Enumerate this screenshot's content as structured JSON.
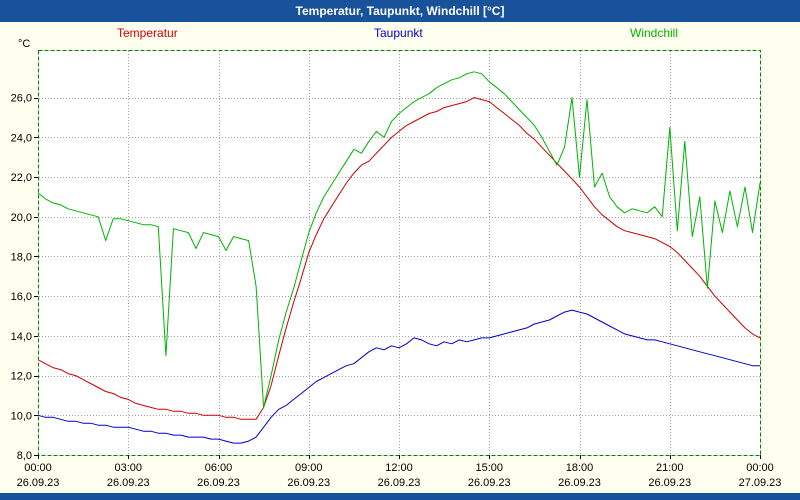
{
  "title_bar": {
    "title": "Temperatur, Taupunkt, Windchill [°C]"
  },
  "legend": {
    "items": [
      {
        "label": "Temperatur",
        "color": "#cc0000"
      },
      {
        "label": "Taupunkt",
        "color": "#0000c8"
      },
      {
        "label": "Windchill",
        "color": "#00b400"
      }
    ]
  },
  "axis": {
    "unit_label": "°C"
  },
  "colors": {
    "page_bg": "#fffff0",
    "plot_bg": "#ffffff",
    "title_bar_bg": "#17529b",
    "plot_border": "#008000",
    "grid": "#a0a0a0",
    "temperatur": "#cc0000",
    "taupunkt": "#0000c8",
    "windchill": "#00b400"
  },
  "chart_data": {
    "type": "line",
    "title": "Temperatur, Taupunkt, Windchill [°C]",
    "ylabel": "°C",
    "xlabel": "",
    "grid": true,
    "xlim": [
      0,
      24
    ],
    "ylim": [
      8,
      28.4
    ],
    "x_start": 0,
    "x_step": 0.25,
    "x_unit": "hours",
    "y_ticks": {
      "values": [
        8,
        10,
        12,
        14,
        16,
        18,
        20,
        22,
        24,
        26
      ],
      "labels": [
        "8,0",
        "10,0",
        "12,0",
        "14,0",
        "16,0",
        "18,0",
        "20,0",
        "22,0",
        "24,0",
        "26,0"
      ]
    },
    "x_ticks": {
      "values": [
        0,
        3,
        6,
        9,
        12,
        15,
        18,
        21,
        24
      ],
      "time_labels": [
        "00:00",
        "03:00",
        "06:00",
        "09:00",
        "12:00",
        "15:00",
        "18:00",
        "21:00",
        "00:00"
      ],
      "date_labels": [
        "26.09.23",
        "26.09.23",
        "26.09.23",
        "26.09.23",
        "26.09.23",
        "26.09.23",
        "26.09.23",
        "26.09.23",
        "27.09.23"
      ]
    },
    "series": [
      {
        "name": "Temperatur",
        "color": "#cc0000",
        "values": [
          12.8,
          12.6,
          12.4,
          12.3,
          12.1,
          12.0,
          11.8,
          11.6,
          11.4,
          11.2,
          11.1,
          10.9,
          10.8,
          10.6,
          10.5,
          10.4,
          10.3,
          10.3,
          10.2,
          10.2,
          10.1,
          10.1,
          10.0,
          10.0,
          10.0,
          9.9,
          9.9,
          9.8,
          9.8,
          9.8,
          10.4,
          11.5,
          13.0,
          14.4,
          15.7,
          16.9,
          18.2,
          19.1,
          19.9,
          20.5,
          21.1,
          21.7,
          22.2,
          22.6,
          22.8,
          23.2,
          23.6,
          24.0,
          24.3,
          24.6,
          24.8,
          25.0,
          25.2,
          25.3,
          25.5,
          25.6,
          25.7,
          25.8,
          26.0,
          25.9,
          25.8,
          25.5,
          25.2,
          24.9,
          24.6,
          24.2,
          23.9,
          23.5,
          23.1,
          22.7,
          22.3,
          21.9,
          21.5,
          21.0,
          20.5,
          20.1,
          19.8,
          19.5,
          19.3,
          19.2,
          19.1,
          19.0,
          18.9,
          18.7,
          18.5,
          18.2,
          17.8,
          17.4,
          17.0,
          16.5,
          16.0,
          15.6,
          15.2,
          14.8,
          14.4,
          14.1,
          13.9
        ]
      },
      {
        "name": "Taupunkt",
        "color": "#0000c8",
        "values": [
          10.0,
          9.9,
          9.9,
          9.8,
          9.7,
          9.7,
          9.6,
          9.6,
          9.5,
          9.5,
          9.4,
          9.4,
          9.4,
          9.3,
          9.2,
          9.2,
          9.1,
          9.1,
          9.0,
          9.0,
          8.9,
          8.9,
          8.9,
          8.8,
          8.8,
          8.7,
          8.6,
          8.6,
          8.7,
          8.9,
          9.4,
          9.9,
          10.3,
          10.5,
          10.8,
          11.1,
          11.4,
          11.7,
          11.9,
          12.1,
          12.3,
          12.5,
          12.6,
          12.9,
          13.2,
          13.4,
          13.3,
          13.5,
          13.4,
          13.6,
          13.9,
          13.8,
          13.6,
          13.5,
          13.7,
          13.6,
          13.8,
          13.7,
          13.8,
          13.9,
          13.9,
          14.0,
          14.1,
          14.2,
          14.3,
          14.4,
          14.6,
          14.7,
          14.8,
          15.0,
          15.2,
          15.3,
          15.2,
          15.1,
          14.9,
          14.7,
          14.5,
          14.3,
          14.1,
          14.0,
          13.9,
          13.8,
          13.8,
          13.7,
          13.6,
          13.5,
          13.4,
          13.3,
          13.2,
          13.1,
          13.0,
          12.9,
          12.8,
          12.7,
          12.6,
          12.5,
          12.5
        ]
      },
      {
        "name": "Windchill",
        "color": "#00b400",
        "values": [
          21.2,
          20.9,
          20.7,
          20.6,
          20.4,
          20.3,
          20.2,
          20.1,
          20.0,
          18.8,
          19.9,
          19.9,
          19.8,
          19.7,
          19.6,
          19.6,
          19.5,
          13.0,
          19.4,
          19.3,
          19.2,
          18.4,
          19.2,
          19.1,
          19.0,
          18.3,
          19.0,
          18.9,
          18.8,
          16.5,
          10.4,
          12.0,
          13.8,
          15.2,
          16.4,
          17.8,
          19.2,
          20.2,
          21.0,
          21.6,
          22.2,
          22.8,
          23.4,
          23.2,
          23.8,
          24.3,
          24.0,
          24.8,
          25.2,
          25.5,
          25.8,
          26.0,
          26.2,
          26.5,
          26.7,
          26.9,
          27.0,
          27.2,
          27.3,
          27.2,
          26.8,
          26.5,
          26.2,
          25.8,
          25.4,
          25.0,
          24.6,
          24.0,
          23.3,
          22.6,
          23.5,
          26.0,
          22.0,
          25.9,
          21.5,
          22.2,
          21.0,
          20.5,
          20.2,
          20.4,
          20.3,
          20.2,
          20.5,
          20.0,
          24.5,
          19.3,
          23.8,
          19.0,
          21.0,
          16.4,
          20.8,
          19.2,
          21.3,
          19.5,
          21.5,
          19.2,
          21.7
        ]
      }
    ]
  }
}
